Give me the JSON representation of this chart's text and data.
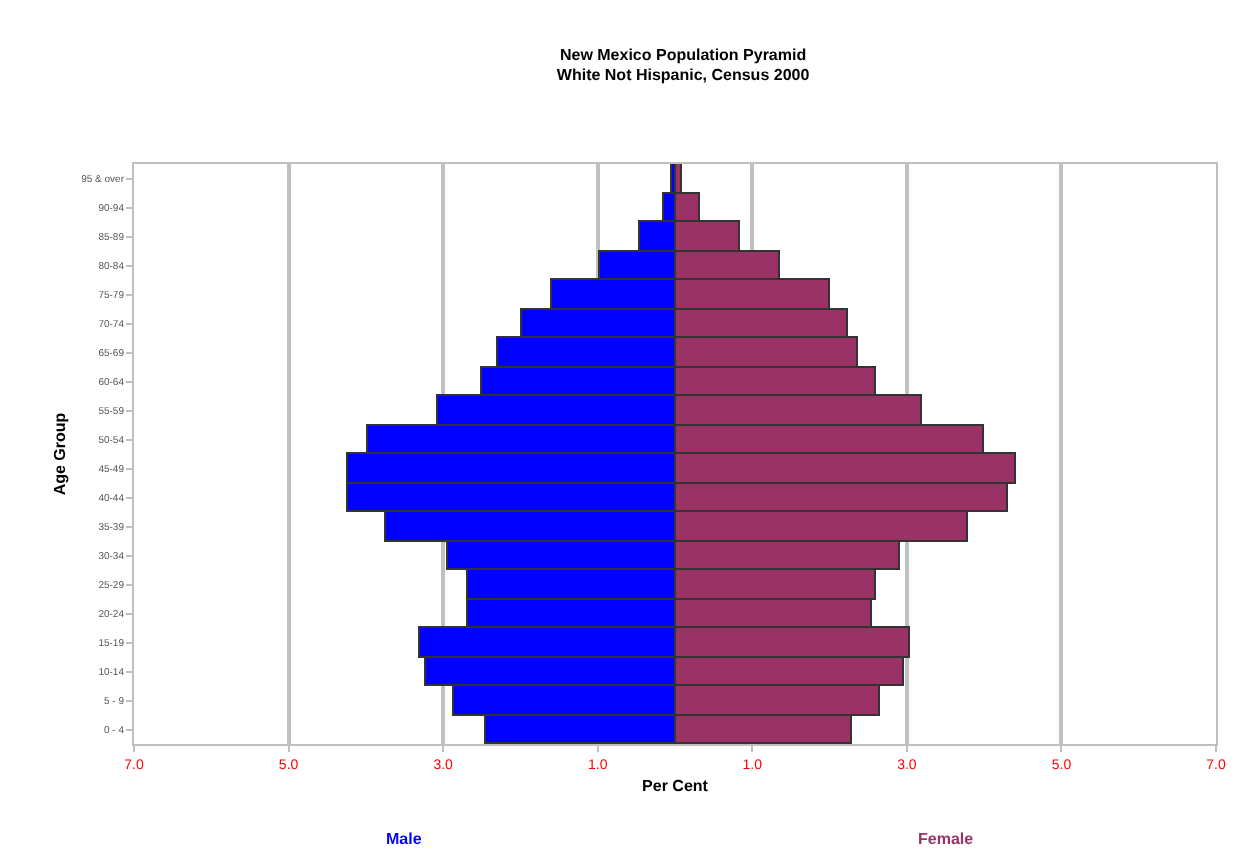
{
  "chart_data": {
    "type": "bar",
    "orientation": "horizontal",
    "title": "New Mexico Population Pyramid",
    "subtitle": "White Not Hispanic, Census 2000",
    "xlabel": "Per Cent",
    "ylabel": "Age Group",
    "categories": [
      "95 & over",
      "90-94",
      "85-89",
      "80-84",
      "75-79",
      "70-74",
      "65-69",
      "60-64",
      "55-59",
      "50-54",
      "45-49",
      "40-44",
      "35-39",
      "30-34",
      "25-29",
      "20-24",
      "15-19",
      "10-14",
      "5 - 9",
      "0 - 4"
    ],
    "series": [
      {
        "name": "Male",
        "color": "#0000ff",
        "values": [
          -0.05,
          -0.15,
          -0.45,
          -0.98,
          -1.58,
          -1.97,
          -2.29,
          -2.49,
          -3.06,
          -3.96,
          -4.23,
          -4.23,
          -3.75,
          -2.93,
          -2.67,
          -2.67,
          -3.31,
          -3.21,
          -2.86,
          -2.44
        ]
      },
      {
        "name": "Female",
        "color": "#993366",
        "values": [
          0.1,
          0.33,
          0.83,
          1.35,
          2.0,
          2.23,
          2.36,
          2.61,
          3.2,
          4.01,
          4.42,
          4.31,
          3.8,
          2.92,
          2.61,
          2.55,
          3.04,
          2.97,
          2.65,
          2.3
        ]
      }
    ],
    "xlim": [
      -7,
      7
    ],
    "xticks": [
      {
        "value": -7,
        "label": "7.0"
      },
      {
        "value": -5,
        "label": "5.0"
      },
      {
        "value": -3,
        "label": "3.0"
      },
      {
        "value": -1,
        "label": "1.0"
      },
      {
        "value": 1,
        "label": "1.0"
      },
      {
        "value": 3,
        "label": "3.0"
      },
      {
        "value": 5,
        "label": "5.0"
      },
      {
        "value": 7,
        "label": "7.0"
      }
    ],
    "stacked": true,
    "grid": "x",
    "legend": false
  }
}
